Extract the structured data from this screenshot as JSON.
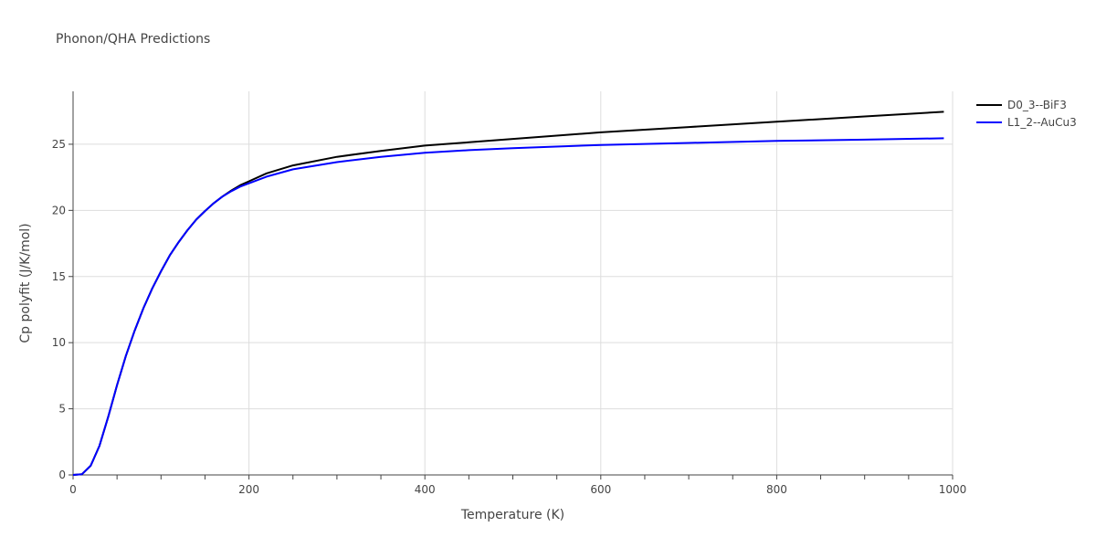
{
  "chart_data": {
    "type": "line",
    "title": "Phonon/QHA Predictions",
    "xlabel": "Temperature (K)",
    "ylabel": "Cp polyfit (J/K/mol)",
    "xlim": [
      0,
      1000
    ],
    "ylim": [
      0,
      29
    ],
    "xticks": [
      0,
      200,
      400,
      600,
      800,
      1000
    ],
    "yticks": [
      0,
      5,
      10,
      15,
      20,
      25
    ],
    "grid": true,
    "legend_position": "top-right",
    "series": [
      {
        "name": "D0_3--BiF3",
        "color": "#000000",
        "x": [
          0,
          10,
          20,
          30,
          40,
          50,
          60,
          70,
          80,
          90,
          100,
          110,
          120,
          130,
          140,
          150,
          160,
          170,
          180,
          190,
          200,
          220,
          250,
          300,
          350,
          400,
          450,
          500,
          600,
          700,
          800,
          900,
          990
        ],
        "y": [
          0,
          0.05,
          0.7,
          2.2,
          4.4,
          6.8,
          9.0,
          10.9,
          12.6,
          14.1,
          15.4,
          16.6,
          17.6,
          18.5,
          19.3,
          19.95,
          20.55,
          21.05,
          21.5,
          21.9,
          22.2,
          22.8,
          23.4,
          24.05,
          24.5,
          24.9,
          25.15,
          25.4,
          25.9,
          26.3,
          26.7,
          27.1,
          27.45
        ]
      },
      {
        "name": "L1_2--AuCu3",
        "color": "#0000ff",
        "x": [
          0,
          10,
          20,
          30,
          40,
          50,
          60,
          70,
          80,
          90,
          100,
          110,
          120,
          130,
          140,
          150,
          160,
          170,
          180,
          190,
          200,
          220,
          250,
          300,
          350,
          400,
          450,
          500,
          600,
          700,
          800,
          900,
          990
        ],
        "y": [
          0,
          0.05,
          0.7,
          2.2,
          4.4,
          6.8,
          9.0,
          10.9,
          12.6,
          14.1,
          15.4,
          16.6,
          17.6,
          18.5,
          19.3,
          19.95,
          20.55,
          21.05,
          21.45,
          21.8,
          22.05,
          22.55,
          23.1,
          23.65,
          24.05,
          24.35,
          24.55,
          24.7,
          24.95,
          25.1,
          25.25,
          25.35,
          25.45
        ]
      }
    ]
  }
}
